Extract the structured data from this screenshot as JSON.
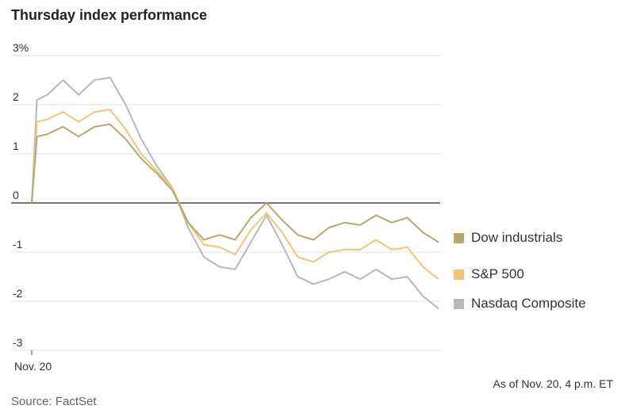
{
  "title": "Thursday index performance",
  "footnote": "As of Nov. 20, 4 p.m. ET",
  "source": "Source: FactSet",
  "chart_data": {
    "type": "line",
    "title": "Thursday index performance",
    "ylim": [
      -3,
      3
    ],
    "yticks": [
      3,
      2,
      1,
      0,
      -1,
      -2,
      -3
    ],
    "ytick_labels": [
      "3%",
      "2",
      "1",
      "0",
      "-1",
      "-2",
      "-3"
    ],
    "xtick_labels": [
      "Nov. 20"
    ],
    "grid": true,
    "legend_position": "right",
    "x_minutes": [
      0,
      5,
      15,
      30,
      45,
      60,
      75,
      90,
      105,
      120,
      135,
      150,
      165,
      180,
      195,
      210,
      225,
      240,
      255,
      270,
      285,
      300,
      315,
      330,
      345,
      360,
      375,
      390
    ],
    "series": [
      {
        "name": "Dow industrials",
        "color": "#b5a86e",
        "values": [
          0,
          1.35,
          1.4,
          1.55,
          1.35,
          1.55,
          1.6,
          1.3,
          0.9,
          0.6,
          0.25,
          -0.4,
          -0.75,
          -0.65,
          -0.75,
          -0.3,
          0.0,
          -0.35,
          -0.65,
          -0.75,
          -0.5,
          -0.4,
          -0.45,
          -0.25,
          -0.4,
          -0.3,
          -0.6,
          -0.8
        ]
      },
      {
        "name": "S&P 500",
        "color": "#f5c27a",
        "values": [
          0,
          1.65,
          1.7,
          1.85,
          1.65,
          1.85,
          1.9,
          1.5,
          1.0,
          0.65,
          0.3,
          -0.4,
          -0.85,
          -0.9,
          -1.05,
          -0.55,
          -0.2,
          -0.6,
          -1.1,
          -1.2,
          -1.0,
          -0.95,
          -0.95,
          -0.75,
          -0.95,
          -0.9,
          -1.3,
          -1.55
        ]
      },
      {
        "name": "Nasdaq Composite",
        "color": "#b8b8b8",
        "values": [
          0,
          2.1,
          2.2,
          2.5,
          2.2,
          2.5,
          2.55,
          2.0,
          1.3,
          0.75,
          0.3,
          -0.5,
          -1.1,
          -1.3,
          -1.35,
          -0.8,
          -0.25,
          -0.85,
          -1.5,
          -1.65,
          -1.55,
          -1.4,
          -1.55,
          -1.35,
          -1.55,
          -1.5,
          -1.9,
          -2.15
        ]
      }
    ]
  }
}
